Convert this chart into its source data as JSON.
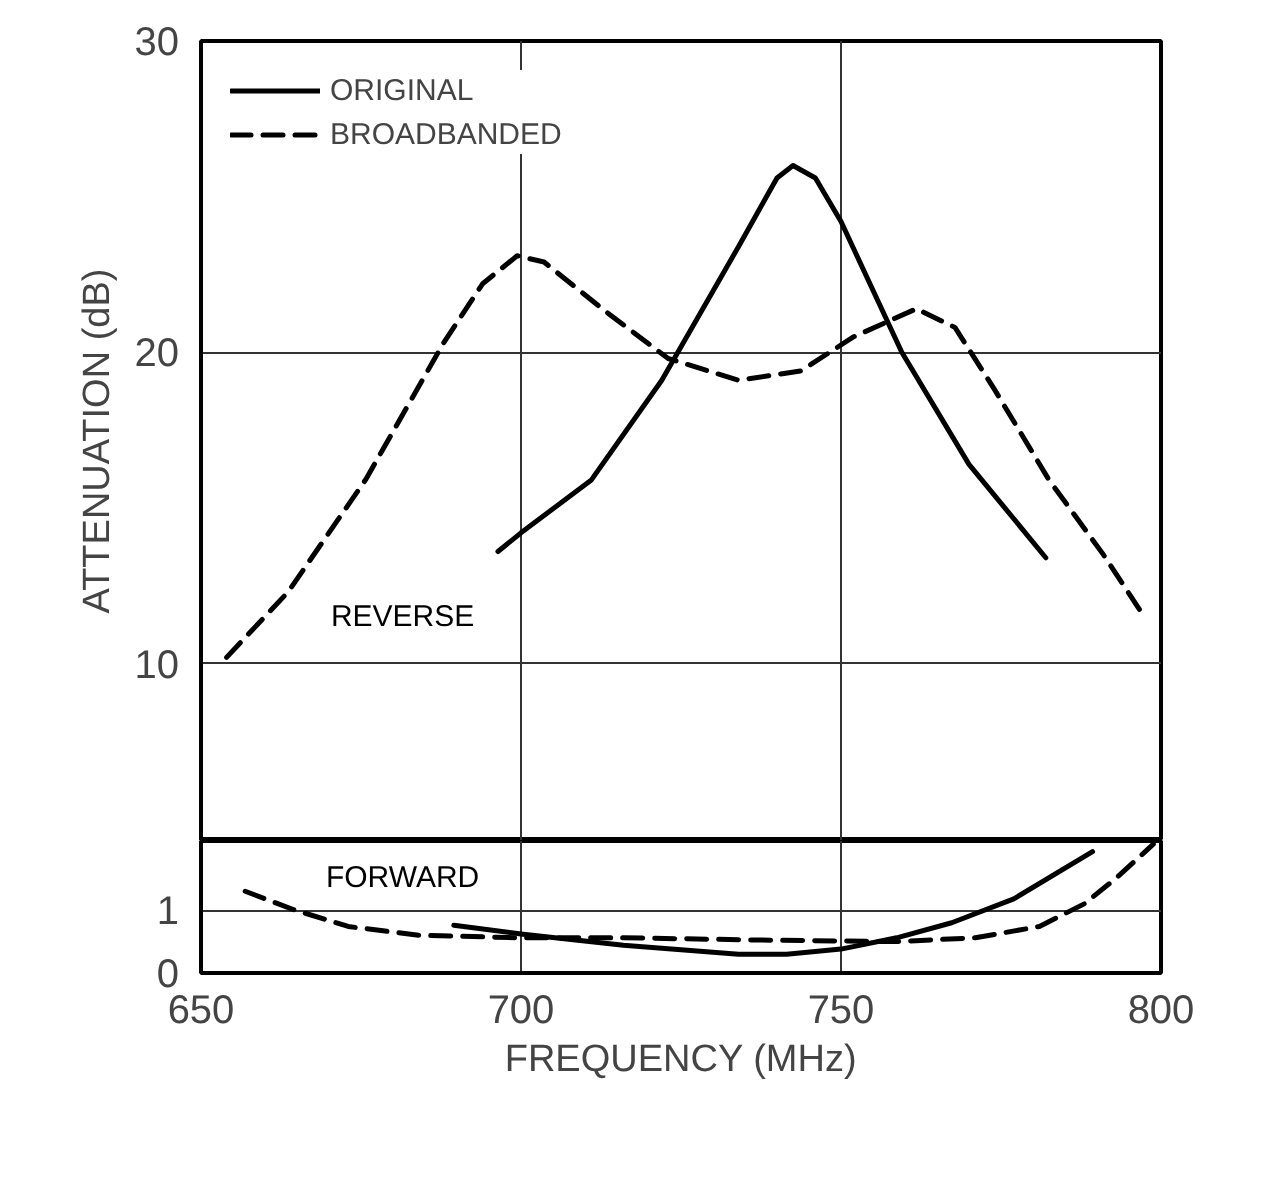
{
  "chart_data": [
    {
      "type": "line",
      "ylabel": "ATTENUATION (dB)",
      "xlim": [
        650,
        800
      ],
      "xticks": [
        650,
        700,
        750,
        800
      ],
      "ylim": [
        4.3,
        30
      ],
      "yticks": [
        10,
        20,
        30
      ],
      "tick_labels": "y",
      "grid": true,
      "legend": "top left",
      "series": [
        {
          "name": "ORIGINAL",
          "color": "#000000",
          "line_style": "solid",
          "x": [
            696.4,
            700,
            711,
            722,
            734,
            740,
            742.5,
            746,
            750,
            759.5,
            770,
            782
          ],
          "values": [
            13.6,
            14.2,
            15.9,
            19.1,
            23.4,
            25.6,
            26.0,
            25.6,
            24.2,
            20.0,
            16.4,
            13.4
          ]
        },
        {
          "name": "BROADBANDED",
          "color": "#000000",
          "line_style": "dashed",
          "x": [
            654,
            663.6,
            675.7,
            687.9,
            694,
            699.4,
            703.6,
            713.3,
            723,
            734,
            743.7,
            752,
            761.8,
            767.8,
            774,
            782.5,
            791,
            797.4
          ],
          "values": [
            10.2,
            12.3,
            15.9,
            20.3,
            22.2,
            23.1,
            22.9,
            21.3,
            19.8,
            19.1,
            19.4,
            20.5,
            21.4,
            20.8,
            18.8,
            15.9,
            13.5,
            11.5
          ]
        }
      ],
      "annotations": [
        "REVERSE"
      ]
    },
    {
      "type": "line",
      "xlabel": "FREQUENCY (MHz)",
      "xlim": [
        650,
        800
      ],
      "xticks": [
        650,
        700,
        750,
        800
      ],
      "ylim": [
        0,
        2.1
      ],
      "yticks": [
        0,
        1
      ],
      "grid": true,
      "series": [
        {
          "color": "#000000",
          "line_style": "solid",
          "x": [
            689.5,
            700,
            716,
            734,
            741.5,
            750,
            758.7,
            767.3,
            777,
            789.3
          ],
          "values": [
            0.76,
            0.62,
            0.44,
            0.3,
            0.3,
            0.38,
            0.56,
            0.8,
            1.18,
            1.93
          ]
        },
        {
          "color": "#000000",
          "line_style": "dashed",
          "x": [
            656.9,
            664.4,
            673,
            684,
            700,
            716,
            740,
            758.7,
            771,
            781,
            788,
            793,
            798.8
          ],
          "values": [
            1.3,
            1.01,
            0.74,
            0.6,
            0.56,
            0.56,
            0.52,
            0.5,
            0.56,
            0.74,
            1.1,
            1.51,
            2.05
          ]
        }
      ],
      "annotations": [
        "FORWARD"
      ]
    }
  ]
}
